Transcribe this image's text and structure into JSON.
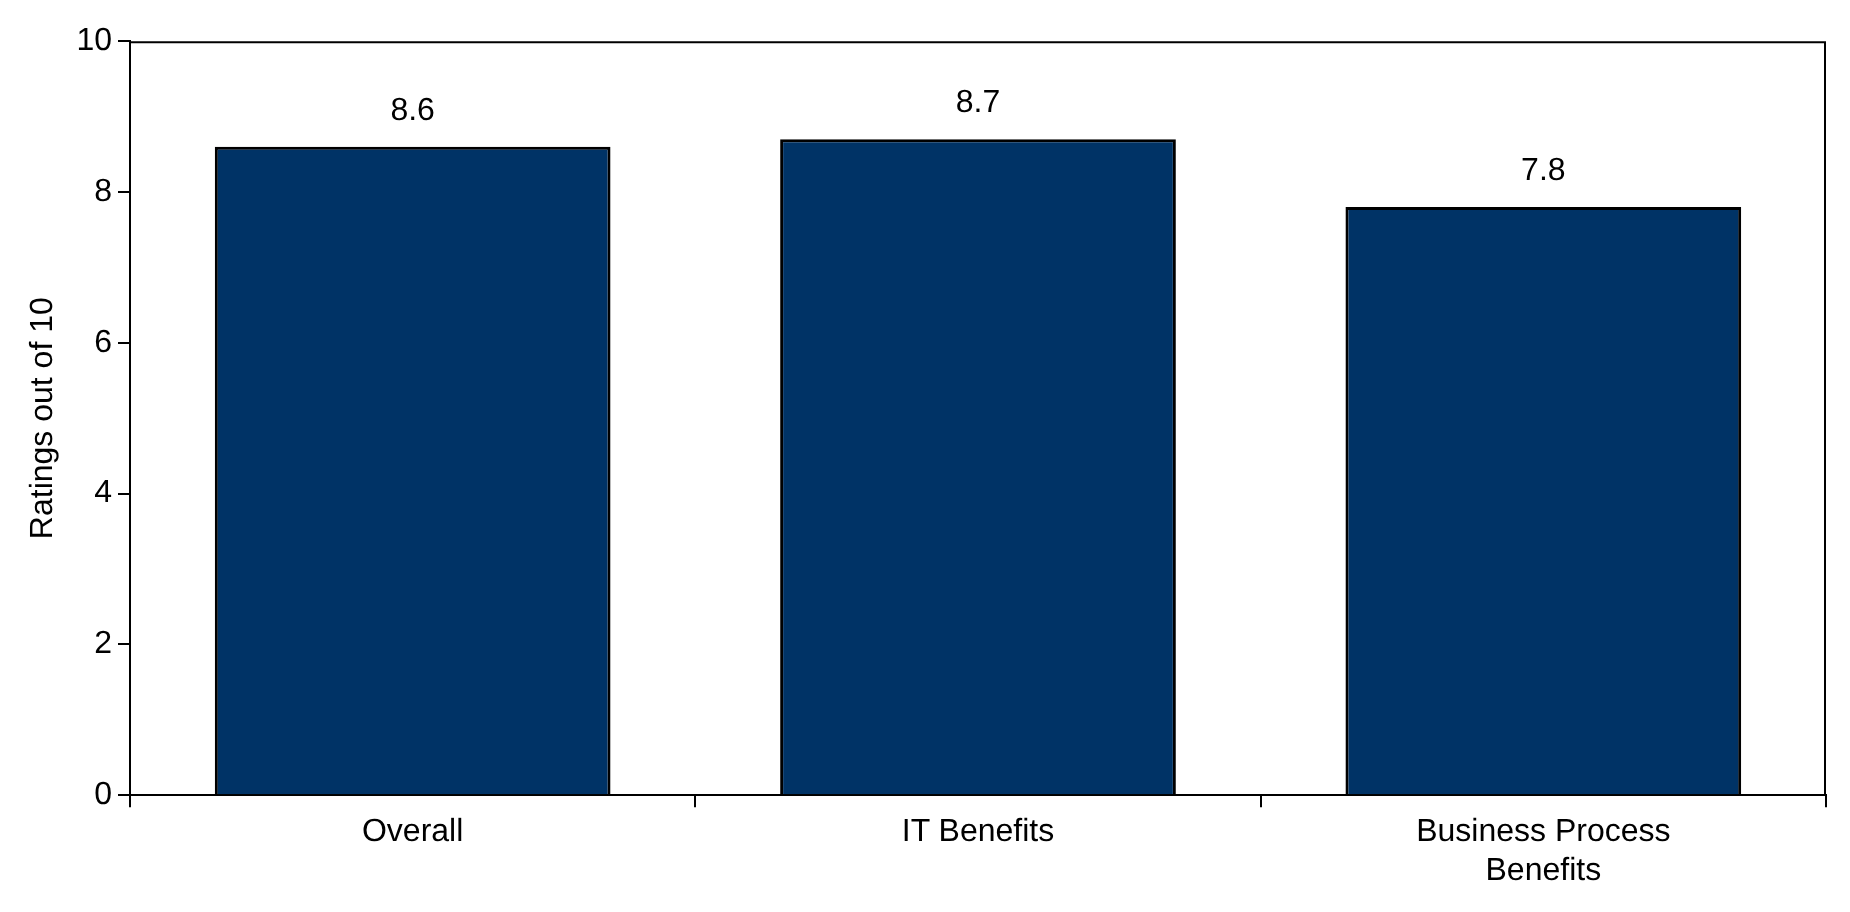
{
  "chart_data": {
    "type": "bar",
    "ylabel": "Ratings out of 10",
    "categories": [
      "Overall",
      "IT Benefits",
      "Business Process Benefits"
    ],
    "values": [
      8.6,
      8.7,
      7.8
    ],
    "color": "#003366",
    "ylim": [
      0,
      10
    ],
    "yticks": [
      0,
      2,
      4,
      6,
      8,
      10
    ],
    "grid": false,
    "legend": false,
    "data_labels": true
  }
}
